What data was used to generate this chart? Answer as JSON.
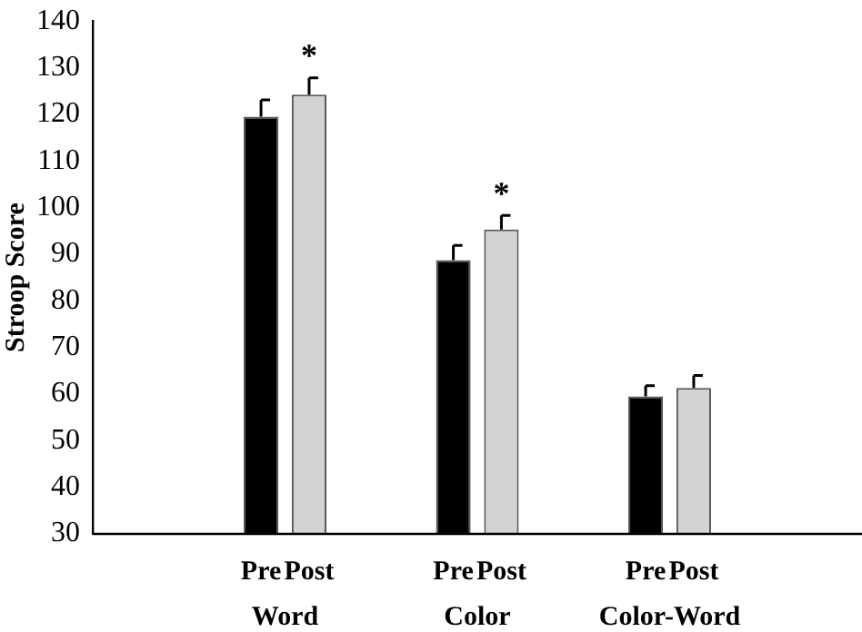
{
  "chart_data": {
    "type": "bar",
    "ylabel": "Stroop Score",
    "categories": [
      "Word",
      "Color",
      "Color-Word"
    ],
    "series": [
      {
        "name": "Pre",
        "color": "#000000",
        "values": [
          119.5,
          88.7,
          59.5
        ],
        "errors": [
          [
            119.5,
            123.1
          ],
          [
            88.7,
            91.9
          ],
          [
            59.5,
            61.8
          ]
        ]
      },
      {
        "name": "Post",
        "color": "#d3d3d3",
        "values": [
          124.2,
          95.3,
          61.3
        ],
        "errors": [
          [
            124.2,
            127.8
          ],
          [
            95.3,
            98.3
          ],
          [
            61.3,
            64
          ]
        ]
      }
    ],
    "ylim": [
      30,
      140
    ],
    "yticks": [
      30,
      40,
      50,
      60,
      70,
      80,
      90,
      100,
      110,
      120,
      130,
      140
    ],
    "grid": false,
    "legend": false,
    "annotations": [
      {
        "text": "*",
        "x": "Word",
        "y": 124.2
      },
      {
        "text": "*",
        "x": "Color",
        "y": 95.3
      }
    ]
  }
}
